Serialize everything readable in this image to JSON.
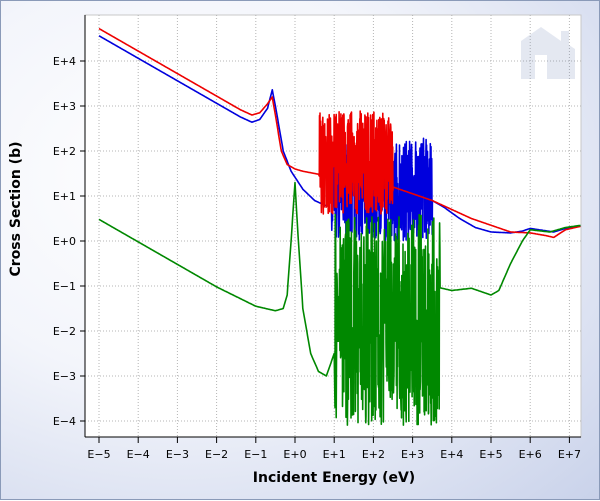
{
  "chart_data": {
    "type": "line",
    "title": "",
    "xlabel": "Incident Energy (eV)",
    "ylabel": "Cross Section (b)",
    "x_scale": "log",
    "y_scale": "log",
    "xlim_exp": [
      -5,
      7.4
    ],
    "ylim_exp": [
      -4.3,
      5
    ],
    "x_tick_exponents": [
      -5,
      -4,
      -3,
      -2,
      -1,
      0,
      1,
      2,
      3,
      4,
      5,
      6,
      7
    ],
    "y_tick_exponents": [
      4,
      3,
      2,
      1,
      0,
      -1,
      -2,
      -3,
      -4
    ],
    "x_tick_labels": [
      "E−5",
      "E−4",
      "E−3",
      "E−2",
      "E−1",
      "E+0",
      "E+1",
      "E+2",
      "E+3",
      "E+4",
      "E+5",
      "E+6",
      "E+7"
    ],
    "y_tick_labels": [
      "E+4",
      "E+3",
      "E+2",
      "E+1",
      "E+0",
      "E−1",
      "E−2",
      "E−3",
      "E−4"
    ],
    "grid": true,
    "legend": "none",
    "series": [
      {
        "color": "#0000dd",
        "points": [
          [
            -5.0,
            4.56
          ],
          [
            -4.0,
            4.06
          ],
          [
            -3.0,
            3.56
          ],
          [
            -2.0,
            3.06
          ],
          [
            -1.4,
            2.76
          ],
          [
            -1.1,
            2.64
          ],
          [
            -0.9,
            2.7
          ],
          [
            -0.7,
            2.95
          ],
          [
            -0.58,
            3.36
          ],
          [
            -0.5,
            3.0
          ],
          [
            -0.3,
            2.0
          ],
          [
            -0.1,
            1.55
          ],
          [
            0.2,
            1.15
          ],
          [
            0.5,
            0.9
          ],
          [
            0.8,
            0.78
          ],
          [
            1.0,
            1.2
          ],
          [
            1.2,
            1.35
          ],
          [
            1.5,
            1.3
          ],
          [
            2.0,
            1.25
          ],
          [
            2.5,
            1.2
          ],
          [
            3.0,
            1.1
          ],
          [
            3.4,
            0.95
          ],
          [
            3.8,
            0.75
          ],
          [
            4.2,
            0.5
          ],
          [
            4.6,
            0.3
          ],
          [
            5.0,
            0.2
          ],
          [
            5.5,
            0.18
          ],
          [
            5.8,
            0.22
          ],
          [
            6.0,
            0.28
          ],
          [
            6.3,
            0.24
          ],
          [
            6.6,
            0.2
          ],
          [
            6.9,
            0.28
          ],
          [
            7.3,
            0.34
          ]
        ],
        "resonance_region": [
          0.9,
          3.5
        ],
        "resonance_range": [
          0.0,
          2.3
        ]
      },
      {
        "color": "#ee0000",
        "points": [
          [
            -5.0,
            4.72
          ],
          [
            -4.0,
            4.22
          ],
          [
            -3.0,
            3.72
          ],
          [
            -2.0,
            3.22
          ],
          [
            -1.4,
            2.92
          ],
          [
            -1.1,
            2.8
          ],
          [
            -0.9,
            2.85
          ],
          [
            -0.7,
            3.05
          ],
          [
            -0.58,
            3.2
          ],
          [
            -0.5,
            2.8
          ],
          [
            -0.35,
            2.0
          ],
          [
            -0.2,
            1.7
          ],
          [
            0.0,
            1.6
          ],
          [
            0.2,
            1.55
          ],
          [
            0.5,
            1.5
          ],
          [
            0.8,
            1.45
          ],
          [
            1.0,
            1.4
          ],
          [
            1.5,
            1.35
          ],
          [
            2.0,
            1.3
          ],
          [
            2.5,
            1.2
          ],
          [
            3.0,
            1.05
          ],
          [
            3.5,
            0.9
          ],
          [
            4.0,
            0.7
          ],
          [
            4.5,
            0.5
          ],
          [
            5.0,
            0.35
          ],
          [
            5.5,
            0.2
          ],
          [
            6.0,
            0.18
          ],
          [
            6.4,
            0.12
          ],
          [
            6.6,
            0.08
          ],
          [
            6.9,
            0.25
          ],
          [
            7.3,
            0.33
          ]
        ],
        "resonance_region": [
          0.6,
          2.5
        ],
        "resonance_range": [
          0.6,
          2.9
        ]
      },
      {
        "color": "#008800",
        "points": [
          [
            -5.0,
            0.48
          ],
          [
            -4.0,
            -0.02
          ],
          [
            -3.0,
            -0.52
          ],
          [
            -2.0,
            -1.02
          ],
          [
            -1.0,
            -1.45
          ],
          [
            -0.5,
            -1.55
          ],
          [
            -0.3,
            -1.5
          ],
          [
            -0.2,
            -1.2
          ],
          [
            -0.1,
            0.0
          ],
          [
            0.0,
            1.3
          ],
          [
            0.05,
            0.5
          ],
          [
            0.2,
            -1.5
          ],
          [
            0.4,
            -2.5
          ],
          [
            0.6,
            -2.9
          ],
          [
            0.8,
            -3.0
          ],
          [
            1.0,
            -2.5
          ],
          [
            1.5,
            -2.0
          ],
          [
            2.0,
            -1.8
          ],
          [
            2.5,
            -1.5
          ],
          [
            3.0,
            -1.2
          ],
          [
            3.5,
            -1.0
          ],
          [
            4.0,
            -1.1
          ],
          [
            4.5,
            -1.05
          ],
          [
            5.0,
            -1.2
          ],
          [
            5.2,
            -1.1
          ],
          [
            5.5,
            -0.5
          ],
          [
            5.8,
            0.0
          ],
          [
            6.0,
            0.25
          ],
          [
            6.5,
            0.2
          ],
          [
            6.9,
            0.3
          ],
          [
            7.3,
            0.35
          ]
        ],
        "resonance_region": [
          1.0,
          3.7
        ],
        "resonance_range": [
          -4.1,
          0.6
        ]
      }
    ],
    "watermark": "house-logo"
  }
}
